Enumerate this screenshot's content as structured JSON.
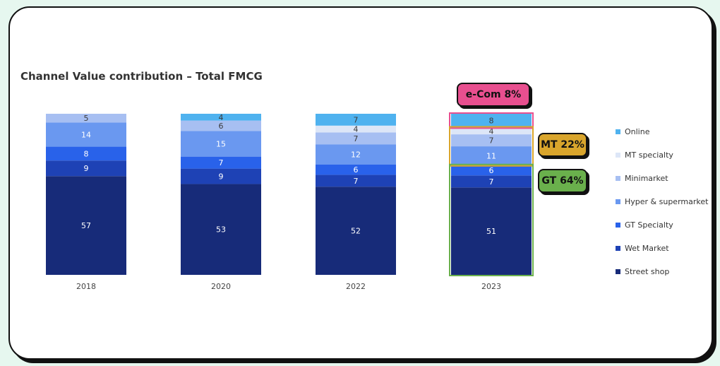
{
  "chart_data": {
    "type": "bar",
    "stacked": true,
    "title": "Channel Value contribution – Total FMCG",
    "categories": [
      "2018",
      "2020",
      "2022",
      "2023"
    ],
    "series": [
      {
        "name": "Street shop",
        "color": "#172b79",
        "values": [
          57,
          53,
          52,
          51
        ]
      },
      {
        "name": "Wet Market",
        "color": "#1e42b5",
        "values": [
          9,
          9,
          7,
          7
        ]
      },
      {
        "name": "GT Specialty",
        "color": "#2962ea",
        "values": [
          8,
          7,
          6,
          6
        ]
      },
      {
        "name": "Hyper & supermarket",
        "color": "#6a98f0",
        "values": [
          14,
          15,
          12,
          11
        ]
      },
      {
        "name": "Minimarket",
        "color": "#a7bff2",
        "values": [
          5,
          6,
          7,
          7
        ]
      },
      {
        "name": "MT specialty",
        "color": "#dde6f7",
        "values": [
          null,
          null,
          4,
          4
        ]
      },
      {
        "name": "Online",
        "color": "#4fb2ef",
        "values": [
          null,
          4,
          7,
          8
        ]
      }
    ],
    "legend_order": [
      "Online",
      "MT specialty",
      "Minimarket",
      "Hyper & supermarket",
      "GT Specialty",
      "Wet Market",
      "Street shop"
    ],
    "annotations": [
      {
        "label": "e-Com 8%",
        "color": "#e84f8f",
        "series": [
          "Online"
        ]
      },
      {
        "label": "MT 22%",
        "color": "#d9a52c",
        "series": [
          "MT specialty",
          "Minimarket",
          "Hyper & supermarket"
        ]
      },
      {
        "label": "GT 64%",
        "color": "#6ab04c",
        "series": [
          "GT Specialty",
          "Wet Market",
          "Street shop"
        ]
      }
    ],
    "annotated_category": "2023"
  }
}
